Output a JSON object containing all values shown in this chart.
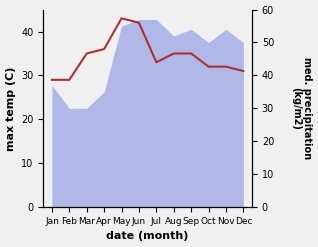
{
  "months": [
    "Jan",
    "Feb",
    "Mar",
    "Apr",
    "May",
    "Jun",
    "Jul",
    "Aug",
    "Sep",
    "Oct",
    "Nov",
    "Dec"
  ],
  "month_indices": [
    0,
    1,
    2,
    3,
    4,
    5,
    6,
    7,
    8,
    9,
    10,
    11
  ],
  "temperature": [
    29,
    29,
    35,
    36,
    43,
    42,
    33,
    35,
    35,
    32,
    32,
    31
  ],
  "precipitation": [
    37,
    30,
    30,
    35,
    55,
    57,
    57,
    52,
    54,
    50,
    54,
    50
  ],
  "temp_color": "#b03030",
  "precip_color": "#b0b8e8",
  "xlabel": "date (month)",
  "ylabel_left": "max temp (C)",
  "ylabel_right": "med. precipitation\n(kg/m2)",
  "ylim_left": [
    0,
    45
  ],
  "ylim_right": [
    0,
    60
  ],
  "yticks_left": [
    0,
    10,
    20,
    30,
    40
  ],
  "yticks_right": [
    0,
    10,
    20,
    30,
    40,
    50,
    60
  ],
  "background_color": "#f0f0f0",
  "fig_width": 3.18,
  "fig_height": 2.47,
  "dpi": 100
}
